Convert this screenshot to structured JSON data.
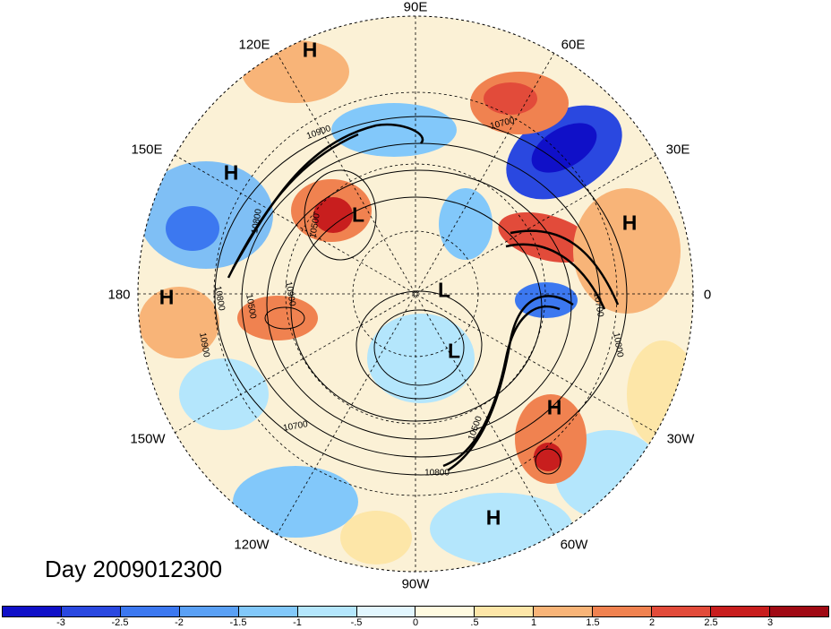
{
  "lon_labels": {
    "e90": "90E",
    "e120": "120E",
    "e60": "60E",
    "e150": "150E",
    "e30": "30E",
    "l180": "180",
    "l0": "0",
    "w150": "150W",
    "w30": "30W",
    "w120": "120W",
    "w60": "60W",
    "w90": "90W"
  },
  "centers": {
    "h1": "H",
    "h2": "H",
    "h3": "H",
    "h4": "H",
    "h5": "H",
    "h6": "H",
    "l1": "L",
    "l2": "L",
    "l3": "L"
  },
  "contour_labels": {
    "c1": "10700",
    "c2": "10900",
    "c3": "10800",
    "c4": "10500",
    "c5": "10800",
    "c6": "10900",
    "c7": "10500",
    "c8": "10900",
    "c9": "10700",
    "c10": "10500",
    "c11": "10800",
    "c12": "10700",
    "c13": "10800"
  },
  "day_label": "Day 2009012300",
  "colorbar": {
    "colors": [
      "#1010c8",
      "#2a48e0",
      "#3c78f0",
      "#5aa0f5",
      "#82c8fa",
      "#b4e6fc",
      "#e2f6fe",
      "#fffae0",
      "#fde6a8",
      "#f8b478",
      "#f08250",
      "#e24b3a",
      "#c81e1e",
      "#a00a14"
    ],
    "ticks": [
      "-3",
      "-2.5",
      "-2",
      "-1.5",
      "-1",
      "-.5",
      "0",
      ".5",
      "1",
      "1.5",
      "2",
      "2.5",
      "3"
    ]
  }
}
